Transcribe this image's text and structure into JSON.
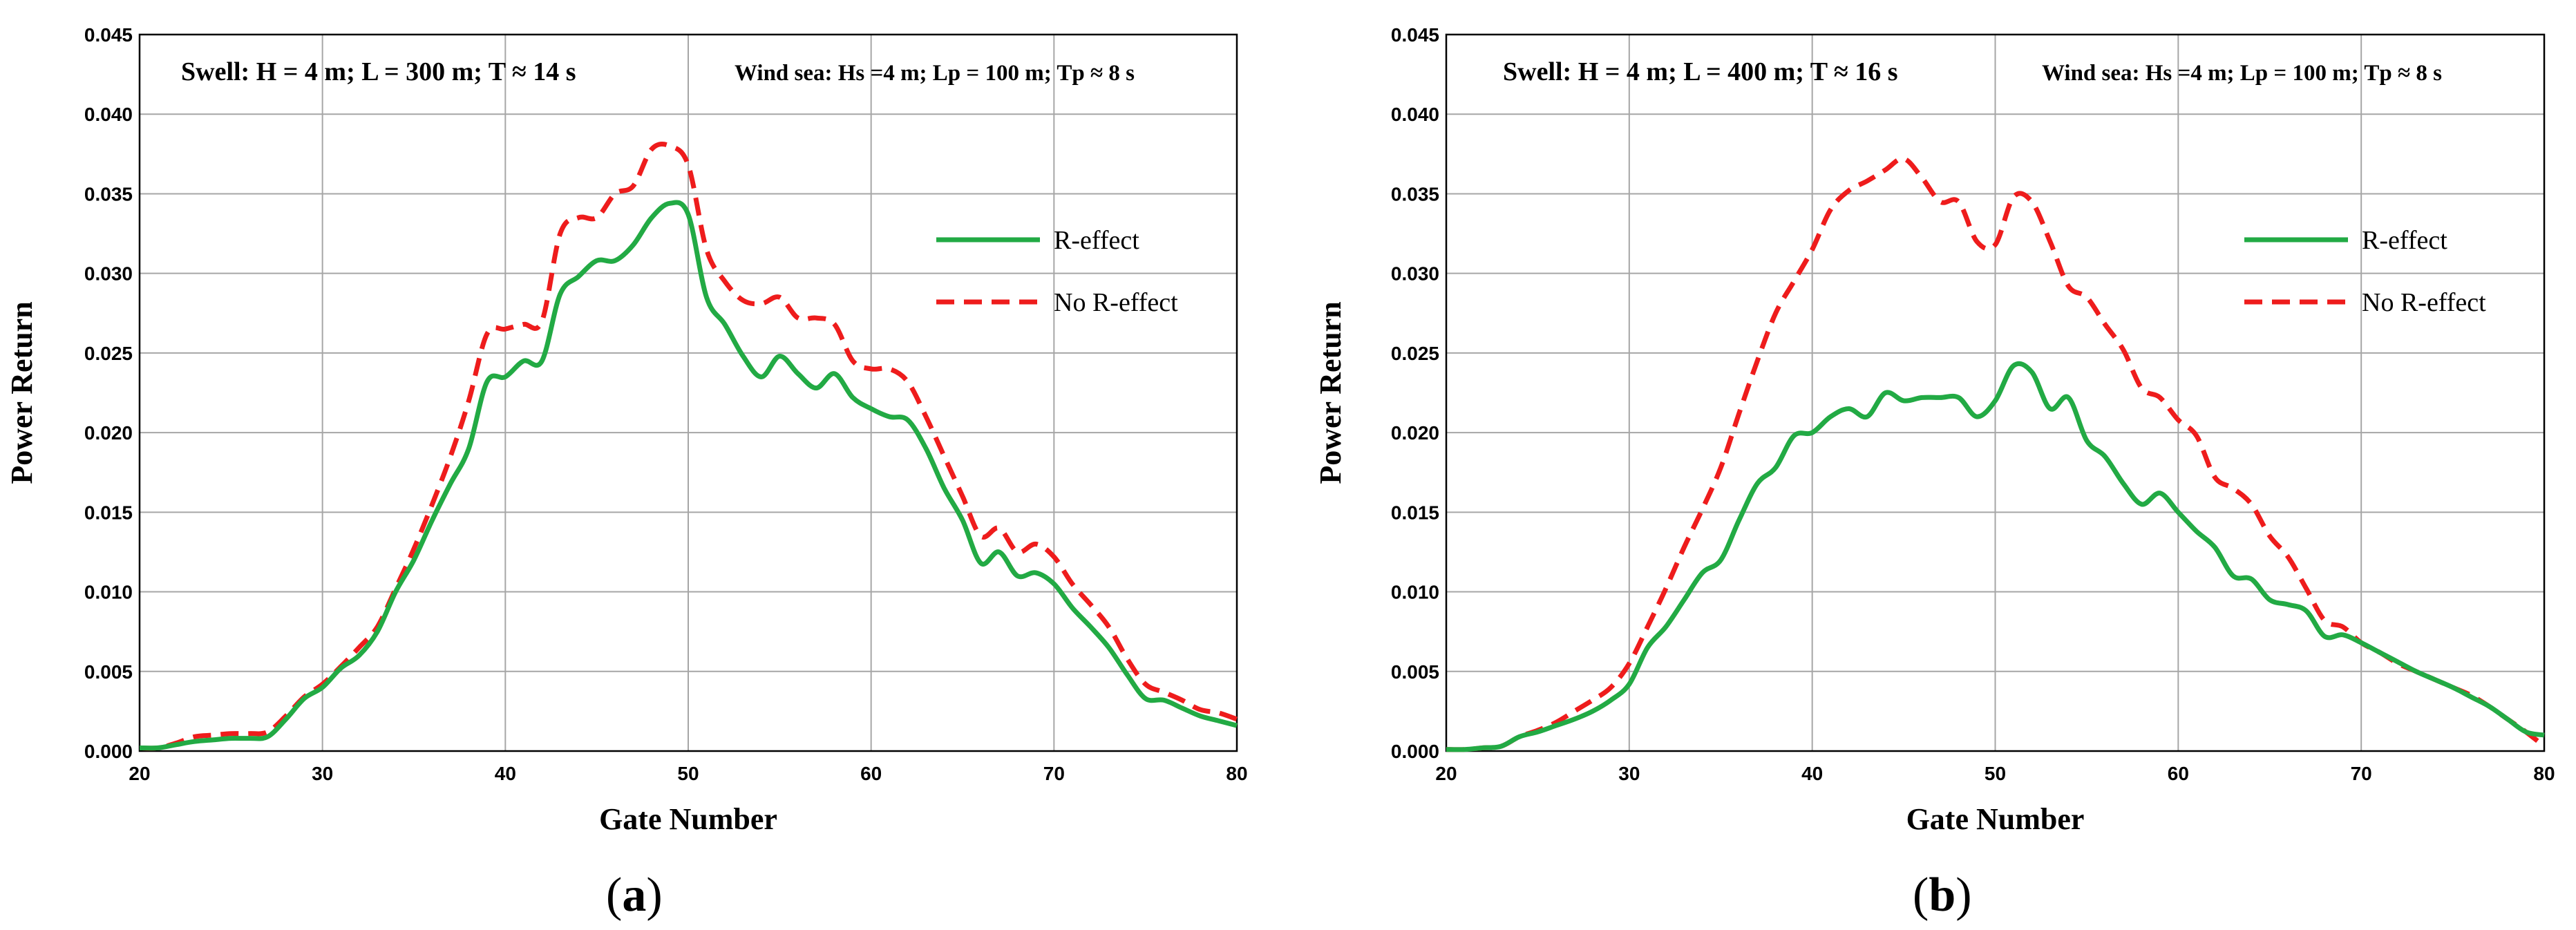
{
  "chart_data": [
    {
      "type": "line",
      "panel_label": "a",
      "caption_open": "(",
      "caption_close": ")",
      "xlabel": "Gate Number",
      "ylabel": "Power Return",
      "xlim": [
        20,
        80
      ],
      "ylim": [
        0,
        0.045
      ],
      "xticks": [
        20,
        30,
        40,
        50,
        60,
        70,
        80
      ],
      "xtick_labels": [
        "20",
        "30",
        "40",
        "50",
        "60",
        "70",
        "80"
      ],
      "yticks": [
        0,
        0.005,
        0.01,
        0.015,
        0.02,
        0.025,
        0.03,
        0.035,
        0.04,
        0.045
      ],
      "ytick_labels": [
        "0.000",
        "0.005",
        "0.010",
        "0.015",
        "0.020",
        "0.025",
        "0.030",
        "0.035",
        "0.040",
        "0.045"
      ],
      "grid": true,
      "annotation_left": "Swell: H = 4 m; L = 300 m; T ≈ 14 s",
      "annotation_right": "Wind sea: Hs =4 m; Lp = 100 m; Tp ≈ 8 s",
      "series": [
        {
          "name": "R-effect",
          "color": "#22aa44",
          "dash": "solid",
          "x": [
            20,
            21,
            22,
            23,
            24,
            25,
            26,
            27,
            28,
            29,
            30,
            31,
            32,
            33,
            34,
            35,
            36,
            37,
            38,
            39,
            40,
            41,
            42,
            43,
            44,
            45,
            46,
            47,
            48,
            49,
            50,
            51,
            52,
            53,
            54,
            55,
            56,
            57,
            58,
            59,
            60,
            61,
            62,
            63,
            64,
            65,
            66,
            67,
            68,
            69,
            70,
            71,
            72,
            73,
            74,
            75,
            76,
            77,
            78,
            79,
            80
          ],
          "values": [
            0.0002,
            0.0002,
            0.0004,
            0.0006,
            0.0007,
            0.0008,
            0.0008,
            0.0009,
            0.002,
            0.0033,
            0.004,
            0.0052,
            0.006,
            0.0075,
            0.01,
            0.012,
            0.0145,
            0.0168,
            0.019,
            0.0232,
            0.0235,
            0.0245,
            0.0245,
            0.0287,
            0.0298,
            0.0308,
            0.0308,
            0.0318,
            0.0335,
            0.0344,
            0.0337,
            0.0285,
            0.0268,
            0.0248,
            0.0235,
            0.0248,
            0.0237,
            0.0228,
            0.0237,
            0.0222,
            0.0215,
            0.021,
            0.0208,
            0.019,
            0.0165,
            0.0145,
            0.0118,
            0.0125,
            0.011,
            0.0112,
            0.0105,
            0.009,
            0.0078,
            0.0065,
            0.0048,
            0.0033,
            0.0032,
            0.0027,
            0.0022,
            0.0019,
            0.0016
          ]
        },
        {
          "name": "No R-effect",
          "color": "#ee1c1c",
          "dash": "dashed",
          "x": [
            20,
            21,
            22,
            23,
            24,
            25,
            26,
            27,
            28,
            29,
            30,
            31,
            32,
            33,
            34,
            35,
            36,
            37,
            38,
            39,
            40,
            41,
            42,
            43,
            44,
            45,
            46,
            47,
            48,
            49,
            50,
            51,
            52,
            53,
            54,
            55,
            56,
            57,
            58,
            59,
            60,
            61,
            62,
            63,
            64,
            65,
            66,
            67,
            68,
            69,
            70,
            71,
            72,
            73,
            74,
            75,
            76,
            77,
            78,
            79,
            80
          ],
          "values": [
            0.0002,
            0.0002,
            0.0005,
            0.0009,
            0.001,
            0.0011,
            0.0011,
            0.0012,
            0.0022,
            0.0034,
            0.0042,
            0.0053,
            0.0065,
            0.0078,
            0.0102,
            0.0127,
            0.0155,
            0.0185,
            0.022,
            0.0262,
            0.0265,
            0.0268,
            0.027,
            0.0325,
            0.0335,
            0.0335,
            0.035,
            0.0355,
            0.0378,
            0.038,
            0.0368,
            0.0315,
            0.0295,
            0.0283,
            0.0281,
            0.0285,
            0.0272,
            0.0272,
            0.0268,
            0.0245,
            0.024,
            0.024,
            0.0232,
            0.021,
            0.0185,
            0.016,
            0.0135,
            0.014,
            0.0125,
            0.013,
            0.0122,
            0.0105,
            0.0092,
            0.0078,
            0.0058,
            0.0042,
            0.0037,
            0.0032,
            0.0026,
            0.0024,
            0.002
          ]
        }
      ]
    },
    {
      "type": "line",
      "panel_label": "b",
      "caption_open": "(",
      "caption_close": ")",
      "xlabel": "Gate Number",
      "ylabel": "Power Return",
      "xlim": [
        20,
        80
      ],
      "ylim": [
        0,
        0.045
      ],
      "xticks": [
        20,
        30,
        40,
        50,
        60,
        70,
        80
      ],
      "xtick_labels": [
        "20",
        "30",
        "40",
        "50",
        "60",
        "70",
        "80"
      ],
      "yticks": [
        0,
        0.005,
        0.01,
        0.015,
        0.02,
        0.025,
        0.03,
        0.035,
        0.04,
        0.045
      ],
      "ytick_labels": [
        "0.000",
        "0.005",
        "0.010",
        "0.015",
        "0.020",
        "0.025",
        "0.030",
        "0.035",
        "0.040",
        "0.045"
      ],
      "grid": true,
      "annotation_left": "Swell: H = 4 m; L = 400 m; T ≈ 16 s",
      "annotation_right": "Wind sea: Hs =4 m; Lp = 100 m; Tp ≈ 8 s",
      "series": [
        {
          "name": "R-effect",
          "color": "#22aa44",
          "dash": "solid",
          "x": [
            20,
            21,
            22,
            23,
            24,
            25,
            26,
            27,
            28,
            29,
            30,
            31,
            32,
            33,
            34,
            35,
            36,
            37,
            38,
            39,
            40,
            41,
            42,
            43,
            44,
            45,
            46,
            47,
            48,
            49,
            50,
            51,
            52,
            53,
            54,
            55,
            56,
            57,
            58,
            59,
            60,
            61,
            62,
            63,
            64,
            65,
            66,
            67,
            68,
            69,
            70,
            71,
            72,
            73,
            74,
            75,
            76,
            77,
            78,
            79,
            80
          ],
          "values": [
            0.0001,
            0.0001,
            0.0002,
            0.0003,
            0.0009,
            0.0012,
            0.0016,
            0.002,
            0.0025,
            0.0032,
            0.0042,
            0.0065,
            0.0078,
            0.0095,
            0.0112,
            0.012,
            0.0145,
            0.0168,
            0.0178,
            0.0198,
            0.02,
            0.021,
            0.0215,
            0.021,
            0.0225,
            0.022,
            0.0222,
            0.0222,
            0.0222,
            0.021,
            0.022,
            0.0242,
            0.0238,
            0.0215,
            0.0222,
            0.0195,
            0.0185,
            0.0168,
            0.0155,
            0.0162,
            0.015,
            0.0138,
            0.0128,
            0.011,
            0.0108,
            0.0095,
            0.0092,
            0.0088,
            0.0072,
            0.0073,
            0.0068,
            0.0062,
            0.0056,
            0.005,
            0.0045,
            0.004,
            0.0034,
            0.0028,
            0.002,
            0.0012,
            0.001
          ]
        },
        {
          "name": "No R-effect",
          "color": "#ee1c1c",
          "dash": "dashed",
          "x": [
            20,
            21,
            22,
            23,
            24,
            25,
            26,
            27,
            28,
            29,
            30,
            31,
            32,
            33,
            34,
            35,
            36,
            37,
            38,
            39,
            40,
            41,
            42,
            43,
            44,
            45,
            46,
            47,
            48,
            49,
            50,
            51,
            52,
            53,
            54,
            55,
            56,
            57,
            58,
            59,
            60,
            61,
            62,
            63,
            64,
            65,
            66,
            67,
            68,
            69,
            70,
            71,
            72,
            73,
            74,
            75,
            76,
            77,
            78,
            79,
            80
          ],
          "values": [
            0.0001,
            0.0001,
            0.0002,
            0.0003,
            0.0009,
            0.0013,
            0.0018,
            0.0025,
            0.0032,
            0.004,
            0.0055,
            0.0078,
            0.0102,
            0.0128,
            0.0152,
            0.0178,
            0.0212,
            0.0245,
            0.0275,
            0.0295,
            0.0315,
            0.034,
            0.0352,
            0.0358,
            0.0365,
            0.0372,
            0.036,
            0.0345,
            0.0345,
            0.032,
            0.0318,
            0.0348,
            0.0345,
            0.032,
            0.0292,
            0.0285,
            0.0268,
            0.0252,
            0.0228,
            0.0222,
            0.0208,
            0.0198,
            0.0172,
            0.0165,
            0.0155,
            0.0135,
            0.0122,
            0.0102,
            0.0082,
            0.0078,
            0.0068,
            0.0062,
            0.0055,
            0.005,
            0.0045,
            0.004,
            0.0035,
            0.0028,
            0.002,
            0.0012,
            0.0003
          ]
        }
      ]
    }
  ]
}
